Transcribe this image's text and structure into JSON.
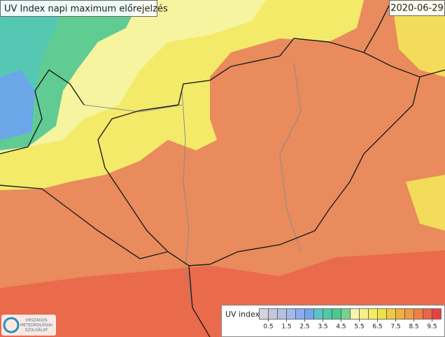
{
  "header": {
    "title": "UV Index napi maximum előrejelzés",
    "date": "2020-06-29"
  },
  "legend": {
    "title": "UV index",
    "ticks": [
      0.5,
      1.5,
      2.5,
      3.5,
      4.5,
      5.5,
      6.5,
      7.5,
      8.5,
      9.5
    ],
    "colors": [
      "#d4d4dc",
      "#c4c8dc",
      "#b4c0e4",
      "#a4b8ec",
      "#8cacf0",
      "#74a4ec",
      "#5cc4c8",
      "#50c8a4",
      "#4cc890",
      "#74d490",
      "#f8f4b0",
      "#f8f088",
      "#f4ec60",
      "#f0e048",
      "#f0c840",
      "#f0b040",
      "#f09a44",
      "#f08044",
      "#ec6444",
      "#e84040"
    ]
  },
  "logo": {
    "lines": [
      "ORSZÁGOS",
      "METEOROLÓGIAI",
      "SZOLGÁLAT"
    ]
  }
}
